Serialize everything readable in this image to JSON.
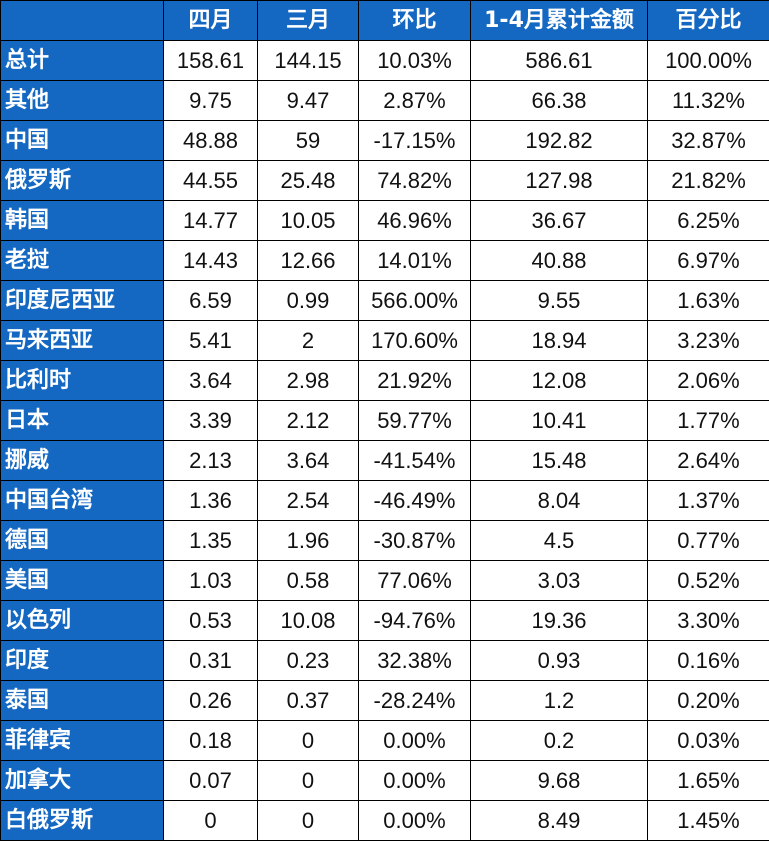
{
  "colors": {
    "header_bg": "#1468c2",
    "header_text": "#ffffff",
    "cell_bg": "#ffffff",
    "border": "#000000"
  },
  "table": {
    "corner_label": "",
    "columns": [
      "四月",
      "三月",
      "环比",
      "1-4月累计金额",
      "百分比"
    ],
    "rows": [
      {
        "label": "总计",
        "cells": [
          "158.61",
          "144.15",
          "10.03%",
          "586.61",
          "100.00%"
        ]
      },
      {
        "label": "其他",
        "cells": [
          "9.75",
          "9.47",
          "2.87%",
          "66.38",
          "11.32%"
        ]
      },
      {
        "label": "中国",
        "cells": [
          "48.88",
          "59",
          "-17.15%",
          "192.82",
          "32.87%"
        ]
      },
      {
        "label": "俄罗斯",
        "cells": [
          "44.55",
          "25.48",
          "74.82%",
          "127.98",
          "21.82%"
        ]
      },
      {
        "label": "韩国",
        "cells": [
          "14.77",
          "10.05",
          "46.96%",
          "36.67",
          "6.25%"
        ]
      },
      {
        "label": "老挝",
        "cells": [
          "14.43",
          "12.66",
          "14.01%",
          "40.88",
          "6.97%"
        ]
      },
      {
        "label": "印度尼西亚",
        "cells": [
          "6.59",
          "0.99",
          "566.00%",
          "9.55",
          "1.63%"
        ]
      },
      {
        "label": "马来西亚",
        "cells": [
          "5.41",
          "2",
          "170.60%",
          "18.94",
          "3.23%"
        ]
      },
      {
        "label": "比利时",
        "cells": [
          "3.64",
          "2.98",
          "21.92%",
          "12.08",
          "2.06%"
        ]
      },
      {
        "label": "日本",
        "cells": [
          "3.39",
          "2.12",
          "59.77%",
          "10.41",
          "1.77%"
        ]
      },
      {
        "label": "挪威",
        "cells": [
          "2.13",
          "3.64",
          "-41.54%",
          "15.48",
          "2.64%"
        ]
      },
      {
        "label": "中国台湾",
        "cells": [
          "1.36",
          "2.54",
          "-46.49%",
          "8.04",
          "1.37%"
        ]
      },
      {
        "label": "德国",
        "cells": [
          "1.35",
          "1.96",
          "-30.87%",
          "4.5",
          "0.77%"
        ]
      },
      {
        "label": "美国",
        "cells": [
          "1.03",
          "0.58",
          "77.06%",
          "3.03",
          "0.52%"
        ]
      },
      {
        "label": "以色列",
        "cells": [
          "0.53",
          "10.08",
          "-94.76%",
          "19.36",
          "3.30%"
        ]
      },
      {
        "label": "印度",
        "cells": [
          "0.31",
          "0.23",
          "32.38%",
          "0.93",
          "0.16%"
        ]
      },
      {
        "label": "泰国",
        "cells": [
          "0.26",
          "0.37",
          "-28.24%",
          "1.2",
          "0.20%"
        ]
      },
      {
        "label": "菲律宾",
        "cells": [
          "0.18",
          "0",
          "0.00%",
          "0.2",
          "0.03%"
        ]
      },
      {
        "label": "加拿大",
        "cells": [
          "0.07",
          "0",
          "0.00%",
          "9.68",
          "1.65%"
        ]
      },
      {
        "label": "白俄罗斯",
        "cells": [
          "0",
          "0",
          "0.00%",
          "8.49",
          "1.45%"
        ]
      }
    ]
  }
}
